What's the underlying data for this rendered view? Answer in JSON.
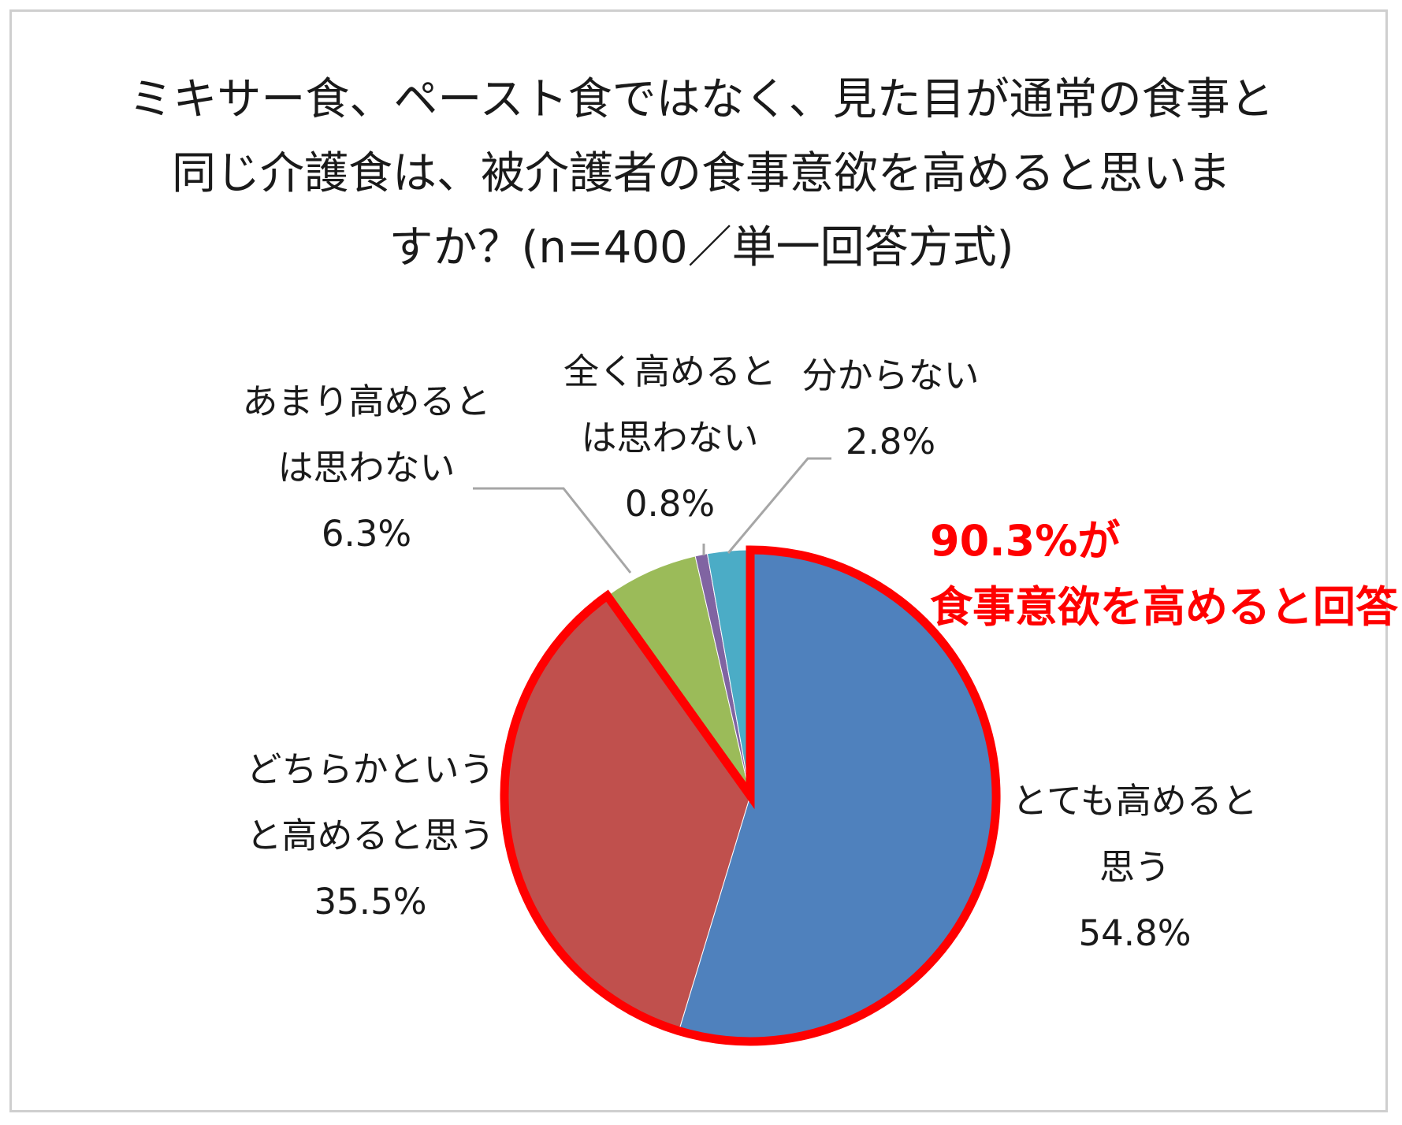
{
  "title_lines": [
    "ミキサー食、ペースト食ではなく、見た目が通常の食事と",
    "同じ介護食は、被介護者の食事意欲を高めると思いま",
    "すか？(n=400／単一回答方式)"
  ],
  "callout": {
    "line1": "90.3%が",
    "line2": "食事意欲を高めると回答",
    "color": "#ff0000"
  },
  "chart_data": {
    "type": "pie",
    "title": "ミキサー食、ペースト食ではなく、見た目が通常の食事と同じ介護食は、被介護者の食事意欲を高めると思いますか？(n=400／単一回答方式)",
    "slices": [
      {
        "label": "とても高めると思う",
        "label_lines": [
          "とても高めると",
          "思う"
        ],
        "value": 54.8,
        "value_text": "54.8%",
        "color": "#4f81bd",
        "highlighted": true
      },
      {
        "label": "どちらかというと高めると思う",
        "label_lines": [
          "どちらかという",
          "と高めると思う"
        ],
        "value": 35.5,
        "value_text": "35.5%",
        "color": "#c0504d",
        "highlighted": true
      },
      {
        "label": "あまり高めるとは思わない",
        "label_lines": [
          "あまり高めると",
          "は思わない"
        ],
        "value": 6.3,
        "value_text": "6.3%",
        "color": "#9bbb59",
        "highlighted": false
      },
      {
        "label": "全く高めるとは思わない",
        "label_lines": [
          "全く高めると",
          "は思わない"
        ],
        "value": 0.8,
        "value_text": "0.8%",
        "color": "#8064a2",
        "highlighted": false
      },
      {
        "label": "分からない",
        "label_lines": [
          "分からない"
        ],
        "value": 2.8,
        "value_text": "2.8%",
        "color": "#4bacc6",
        "highlighted": false
      }
    ],
    "start_angle": "12 o'clock",
    "direction": "clockwise",
    "highlight_color": "#ff0000",
    "leader_line_color": "#a6a6a6"
  }
}
